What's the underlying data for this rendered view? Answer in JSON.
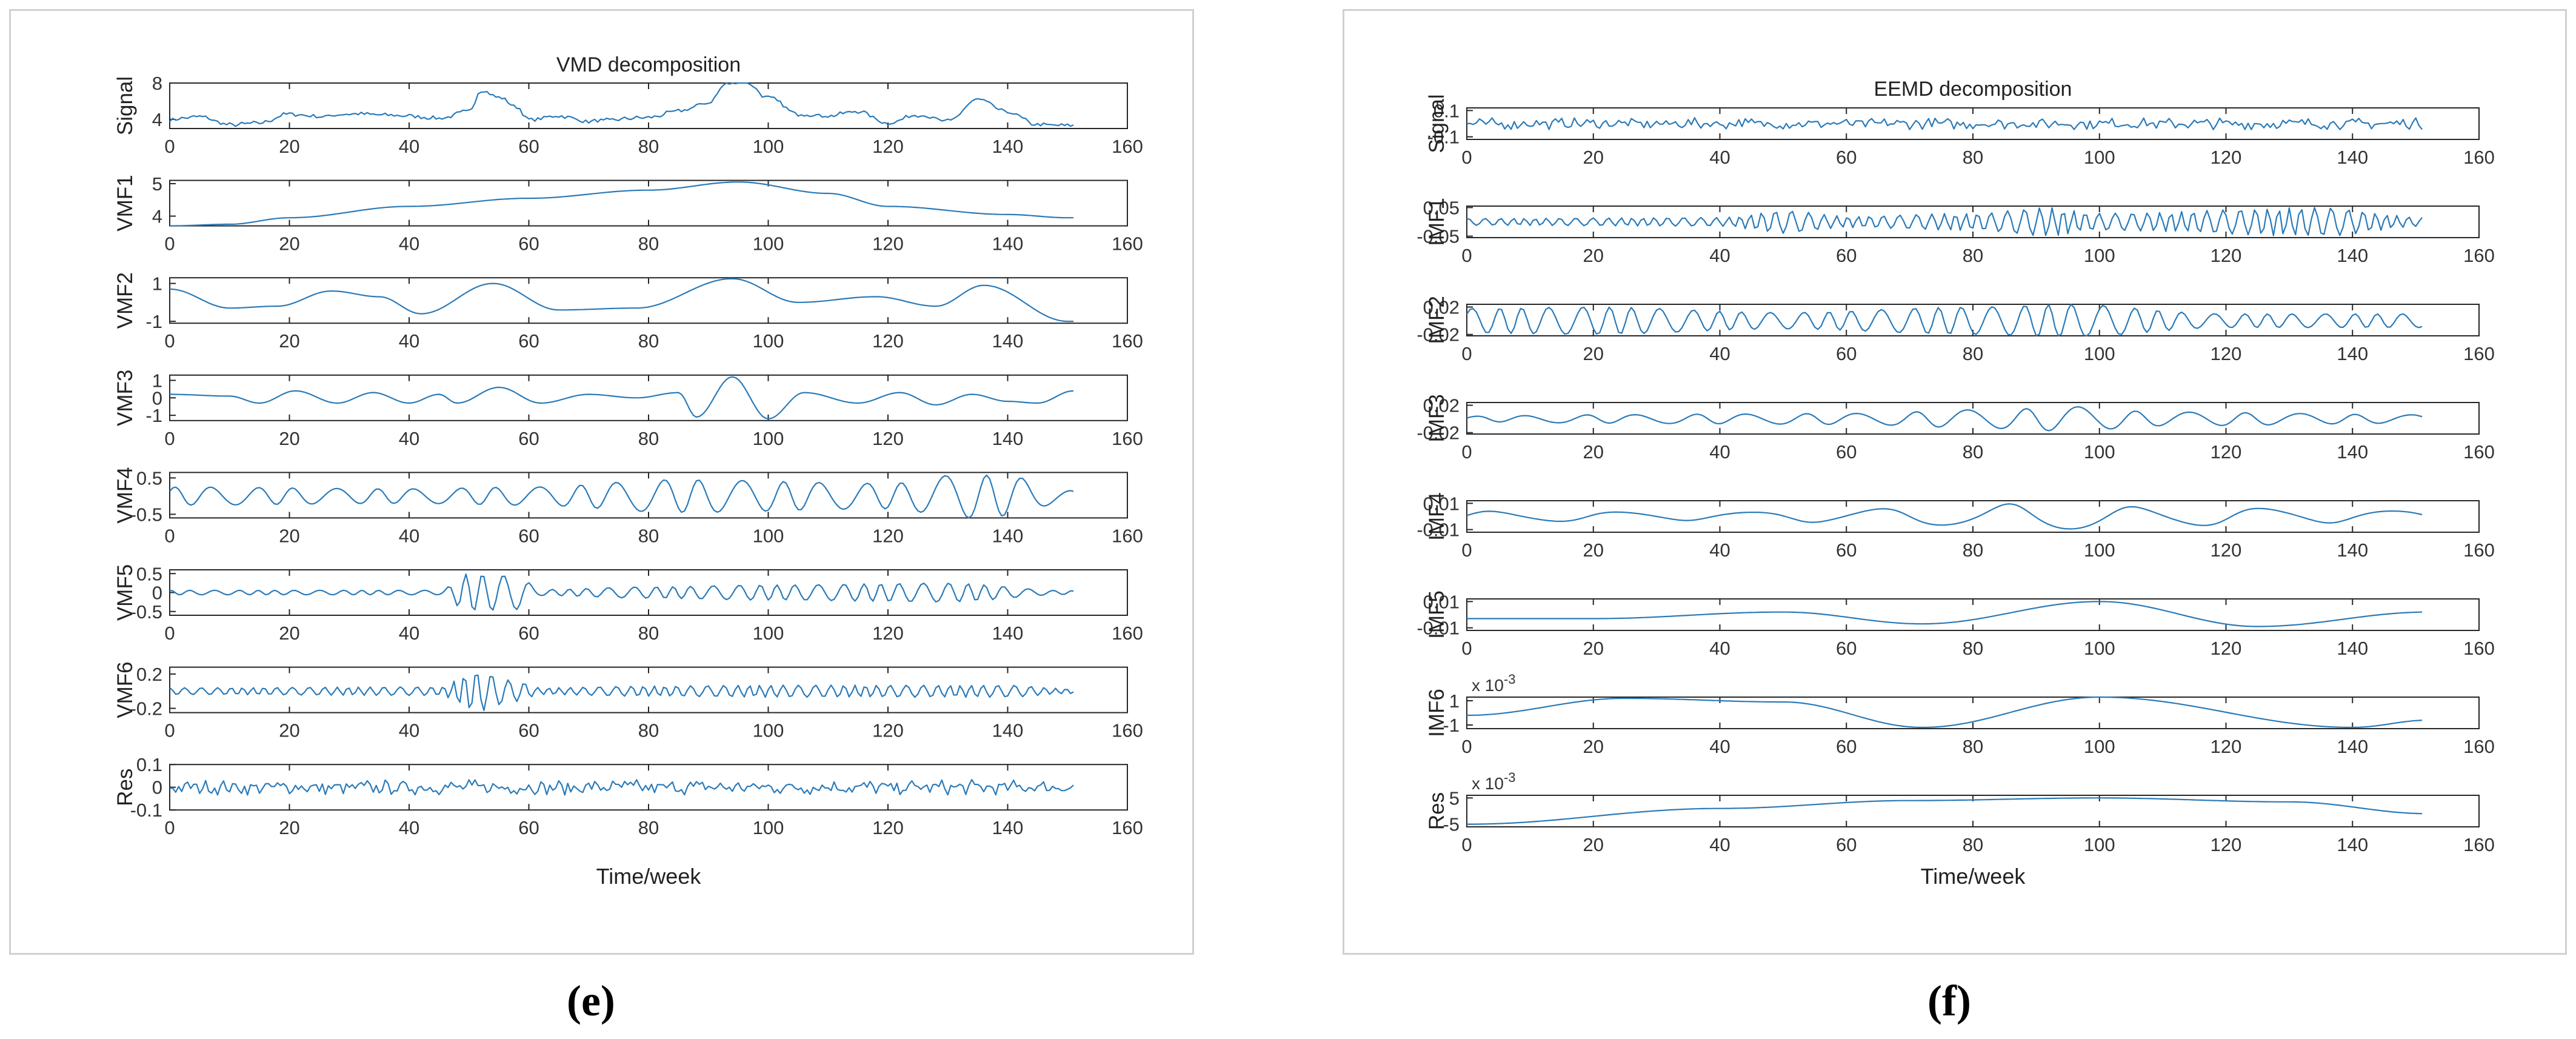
{
  "chart_data": [
    {
      "type": "line",
      "title": "VMD decomposition",
      "xlabel": "Time/week",
      "xlim": [
        0,
        160
      ],
      "xticks": [
        0,
        20,
        40,
        60,
        80,
        100,
        120,
        140,
        160
      ],
      "line_color": "#2a7ab8",
      "grid": false,
      "panels": [
        {
          "ylabel": "Signal",
          "ylim": [
            3,
            8
          ],
          "yticks": [
            {
              "v": 4,
              "t": "4"
            },
            {
              "v": 8,
              "t": "8"
            }
          ],
          "knots": [
            [
              0,
              4.0
            ],
            [
              5,
              4.3
            ],
            [
              10,
              3.4
            ],
            [
              15,
              3.6
            ],
            [
              20,
              4.6
            ],
            [
              25,
              4.3
            ],
            [
              30,
              4.6
            ],
            [
              40,
              4.4
            ],
            [
              45,
              4.1
            ],
            [
              50,
              4.9
            ],
            [
              52,
              7.2
            ],
            [
              55,
              6.4
            ],
            [
              58,
              5.4
            ],
            [
              60,
              4.0
            ],
            [
              65,
              4.4
            ],
            [
              70,
              3.8
            ],
            [
              80,
              4.2
            ],
            [
              85,
              4.9
            ],
            [
              90,
              5.8
            ],
            [
              93,
              7.9
            ],
            [
              96,
              8.2
            ],
            [
              100,
              6.4
            ],
            [
              105,
              4.6
            ],
            [
              110,
              4.4
            ],
            [
              115,
              4.9
            ],
            [
              120,
              3.6
            ],
            [
              125,
              4.5
            ],
            [
              130,
              3.8
            ],
            [
              135,
              6.2
            ],
            [
              140,
              4.8
            ],
            [
              145,
              3.4
            ],
            [
              151,
              3.3
            ]
          ],
          "noise": 0.25
        },
        {
          "ylabel": "VMF1",
          "ylim": [
            3.7,
            5.1
          ],
          "yticks": [
            {
              "v": 4,
              "t": "4"
            },
            {
              "v": 5,
              "t": "5"
            }
          ],
          "knots": [
            [
              0,
              3.7
            ],
            [
              10,
              3.75
            ],
            [
              20,
              3.95
            ],
            [
              40,
              4.3
            ],
            [
              60,
              4.55
            ],
            [
              80,
              4.8
            ],
            [
              95,
              5.05
            ],
            [
              110,
              4.7
            ],
            [
              120,
              4.3
            ],
            [
              140,
              4.05
            ],
            [
              150,
              3.95
            ]
          ],
          "noise": 0.0
        },
        {
          "ylabel": "VMF2",
          "ylim": [
            -1.1,
            1.3
          ],
          "yticks": [
            {
              "v": -1,
              "t": "-1"
            },
            {
              "v": 1,
              "t": "1"
            }
          ],
          "knots": [
            [
              0,
              0.7
            ],
            [
              10,
              -0.3
            ],
            [
              18,
              -0.2
            ],
            [
              27,
              0.6
            ],
            [
              35,
              0.3
            ],
            [
              42,
              -0.6
            ],
            [
              54,
              1.0
            ],
            [
              65,
              -0.4
            ],
            [
              78,
              -0.3
            ],
            [
              94,
              1.25
            ],
            [
              105,
              0.0
            ],
            [
              118,
              0.3
            ],
            [
              128,
              -0.2
            ],
            [
              136,
              0.9
            ],
            [
              150,
              -1.0
            ]
          ],
          "noise": 0.0
        },
        {
          "ylabel": "VMF3",
          "ylim": [
            -1.3,
            1.3
          ],
          "yticks": [
            {
              "v": -1,
              "t": "-1"
            },
            {
              "v": 0,
              "t": "0"
            },
            {
              "v": 1,
              "t": "1"
            }
          ],
          "knots": [
            [
              0,
              0.2
            ],
            [
              10,
              0.1
            ],
            [
              15,
              -0.3
            ],
            [
              21,
              0.4
            ],
            [
              28,
              -0.3
            ],
            [
              34,
              0.3
            ],
            [
              40,
              -0.3
            ],
            [
              45,
              0.2
            ],
            [
              48,
              -0.3
            ],
            [
              55,
              0.6
            ],
            [
              62,
              -0.3
            ],
            [
              70,
              0.2
            ],
            [
              78,
              0.0
            ],
            [
              85,
              0.3
            ],
            [
              88,
              -1.1
            ],
            [
              94,
              1.2
            ],
            [
              100,
              -1.2
            ],
            [
              106,
              0.3
            ],
            [
              115,
              -0.3
            ],
            [
              122,
              0.3
            ],
            [
              128,
              -0.4
            ],
            [
              134,
              0.2
            ],
            [
              140,
              -0.2
            ],
            [
              145,
              -0.3
            ],
            [
              151,
              0.4
            ]
          ],
          "noise": 0.0
        },
        {
          "ylabel": "VMF4",
          "ylim": [
            -0.6,
            0.65
          ],
          "yticks": [
            {
              "v": 0.5,
              "t": "0.5"
            },
            {
              "v": -0.5,
              "t": "-0.5"
            }
          ],
          "period": 7.0,
          "env": [
            [
              0,
              0.25
            ],
            [
              40,
              0.2
            ],
            [
              60,
              0.25
            ],
            [
              85,
              0.45
            ],
            [
              120,
              0.35
            ],
            [
              133,
              0.6
            ],
            [
              140,
              0.55
            ],
            [
              150,
              0.15
            ]
          ],
          "noise": 0.0
        },
        {
          "ylabel": "VMF5",
          "ylim": [
            -0.6,
            0.6
          ],
          "yticks": [
            {
              "v": 0.5,
              "t": "0.5"
            },
            {
              "v": 0,
              "t": "0"
            },
            {
              "v": -0.5,
              "t": "-0.5"
            }
          ],
          "period": 3.6,
          "env": [
            [
              0,
              0.06
            ],
            [
              45,
              0.06
            ],
            [
              50,
              0.5
            ],
            [
              58,
              0.45
            ],
            [
              62,
              0.08
            ],
            [
              80,
              0.15
            ],
            [
              100,
              0.2
            ],
            [
              130,
              0.25
            ],
            [
              150,
              0.05
            ]
          ],
          "noise": 0.0
        },
        {
          "ylabel": "VMF6",
          "ylim": [
            -0.25,
            0.28
          ],
          "yticks": [
            {
              "v": 0.2,
              "t": "0.2"
            },
            {
              "v": -0.2,
              "t": "-0.2"
            }
          ],
          "period": 2.3,
          "env": [
            [
              0,
              0.04
            ],
            [
              45,
              0.05
            ],
            [
              51,
              0.24
            ],
            [
              58,
              0.12
            ],
            [
              62,
              0.04
            ],
            [
              80,
              0.06
            ],
            [
              100,
              0.07
            ],
            [
              140,
              0.07
            ],
            [
              150,
              0.03
            ]
          ],
          "noise": 0.0
        },
        {
          "ylabel": "Res",
          "ylim": [
            -0.1,
            0.1
          ],
          "yticks": [
            {
              "v": 0.1,
              "t": "0.1"
            },
            {
              "v": 0,
              "t": "0"
            },
            {
              "v": -0.1,
              "t": "-0.1"
            }
          ],
          "knots": [
            [
              0,
              0
            ],
            [
              150,
              0
            ]
          ],
          "noise": 0.035
        }
      ]
    },
    {
      "type": "line",
      "title": "EEMD decomposition",
      "xlabel": "Time/week",
      "xlim": [
        0,
        160
      ],
      "xticks": [
        0,
        20,
        40,
        60,
        80,
        100,
        120,
        140,
        160
      ],
      "line_color": "#2a7ab8",
      "grid": false,
      "panels": [
        {
          "ylabel": "Signal",
          "ylim": [
            -0.12,
            0.12
          ],
          "yticks": [
            {
              "v": 0.1,
              "t": "0.1"
            },
            {
              "v": -0.1,
              "t": "-0.1"
            }
          ],
          "knots": [
            [
              0,
              0
            ],
            [
              152,
              0
            ]
          ],
          "noise": 0.045
        },
        {
          "ylabel": "IMF1",
          "ylim": [
            -0.055,
            0.055
          ],
          "yticks": [
            {
              "v": 0.05,
              "t": "0.05"
            },
            {
              "v": -0.05,
              "t": "-0.05"
            }
          ],
          "period": 2.2,
          "env": [
            [
              0,
              0.012
            ],
            [
              40,
              0.015
            ],
            [
              50,
              0.04
            ],
            [
              60,
              0.02
            ],
            [
              80,
              0.03
            ],
            [
              92,
              0.05
            ],
            [
              100,
              0.03
            ],
            [
              135,
              0.05
            ],
            [
              152,
              0.015
            ]
          ],
          "noise": 0.0
        },
        {
          "ylabel": "IMF2",
          "ylim": [
            -0.022,
            0.024
          ],
          "yticks": [
            {
              "v": 0.02,
              "t": "0.02"
            },
            {
              "v": -0.02,
              "t": "-0.02"
            }
          ],
          "period": 4.5,
          "env": [
            [
              0,
              0.018
            ],
            [
              20,
              0.02
            ],
            [
              50,
              0.012
            ],
            [
              80,
              0.02
            ],
            [
              95,
              0.024
            ],
            [
              120,
              0.01
            ],
            [
              152,
              0.01
            ]
          ],
          "noise": 0.0
        },
        {
          "ylabel": "IMF3",
          "ylim": [
            -0.022,
            0.024
          ],
          "yticks": [
            {
              "v": 0.02,
              "t": "0.02"
            },
            {
              "v": -0.02,
              "t": "-0.02"
            }
          ],
          "period": 9.0,
          "env": [
            [
              0,
              0.004
            ],
            [
              20,
              0.006
            ],
            [
              40,
              0.007
            ],
            [
              60,
              0.008
            ],
            [
              85,
              0.014
            ],
            [
              95,
              0.018
            ],
            [
              110,
              0.01
            ],
            [
              152,
              0.006
            ]
          ],
          "noise": 0.0
        },
        {
          "ylabel": "IMF4",
          "ylim": [
            -0.012,
            0.012
          ],
          "yticks": [
            {
              "v": 0.01,
              "t": "0.01"
            },
            {
              "v": -0.01,
              "t": "-0.01"
            }
          ],
          "period": 21.0,
          "env": [
            [
              0,
              0.004
            ],
            [
              40,
              0.003
            ],
            [
              70,
              0.006
            ],
            [
              90,
              0.01
            ],
            [
              110,
              0.007
            ],
            [
              152,
              0.004
            ]
          ],
          "noise": 0.0
        },
        {
          "ylabel": "IMF5",
          "ylim": [
            -0.012,
            0.012
          ],
          "yticks": [
            {
              "v": 0.01,
              "t": "0.01"
            },
            {
              "v": -0.01,
              "t": "-0.01"
            }
          ],
          "knots": [
            [
              0,
              -0.003
            ],
            [
              20,
              -0.003
            ],
            [
              50,
              0.002
            ],
            [
              72,
              -0.007
            ],
            [
              100,
              0.01
            ],
            [
              125,
              -0.009
            ],
            [
              152,
              0.002
            ]
          ],
          "noise": 0.0
        },
        {
          "ylabel": "IMF6",
          "ylim": [
            -1.3,
            1.3
          ],
          "exponent": "x 10^{-3}",
          "yticks": [
            {
              "v": 1,
              "t": "1"
            },
            {
              "v": -1,
              "t": "-1"
            }
          ],
          "knots": [
            [
              0,
              -0.2
            ],
            [
              25,
              1.2
            ],
            [
              50,
              0.9
            ],
            [
              72,
              -1.2
            ],
            [
              100,
              1.3
            ],
            [
              140,
              -1.2
            ],
            [
              152,
              -0.6
            ]
          ],
          "noise": 0.0
        },
        {
          "ylabel": "Res",
          "ylim": [
            -6,
            6
          ],
          "exponent": "x 10^{-3}",
          "yticks": [
            {
              "v": 5,
              "t": "5"
            },
            {
              "v": -5,
              "t": "-5"
            }
          ],
          "knots": [
            [
              0,
              -5
            ],
            [
              40,
              1
            ],
            [
              70,
              4
            ],
            [
              100,
              5
            ],
            [
              130,
              3.5
            ],
            [
              152,
              -1
            ]
          ],
          "noise": 0.0
        }
      ]
    }
  ],
  "captions": {
    "e": "(e)",
    "f": "(f)"
  }
}
